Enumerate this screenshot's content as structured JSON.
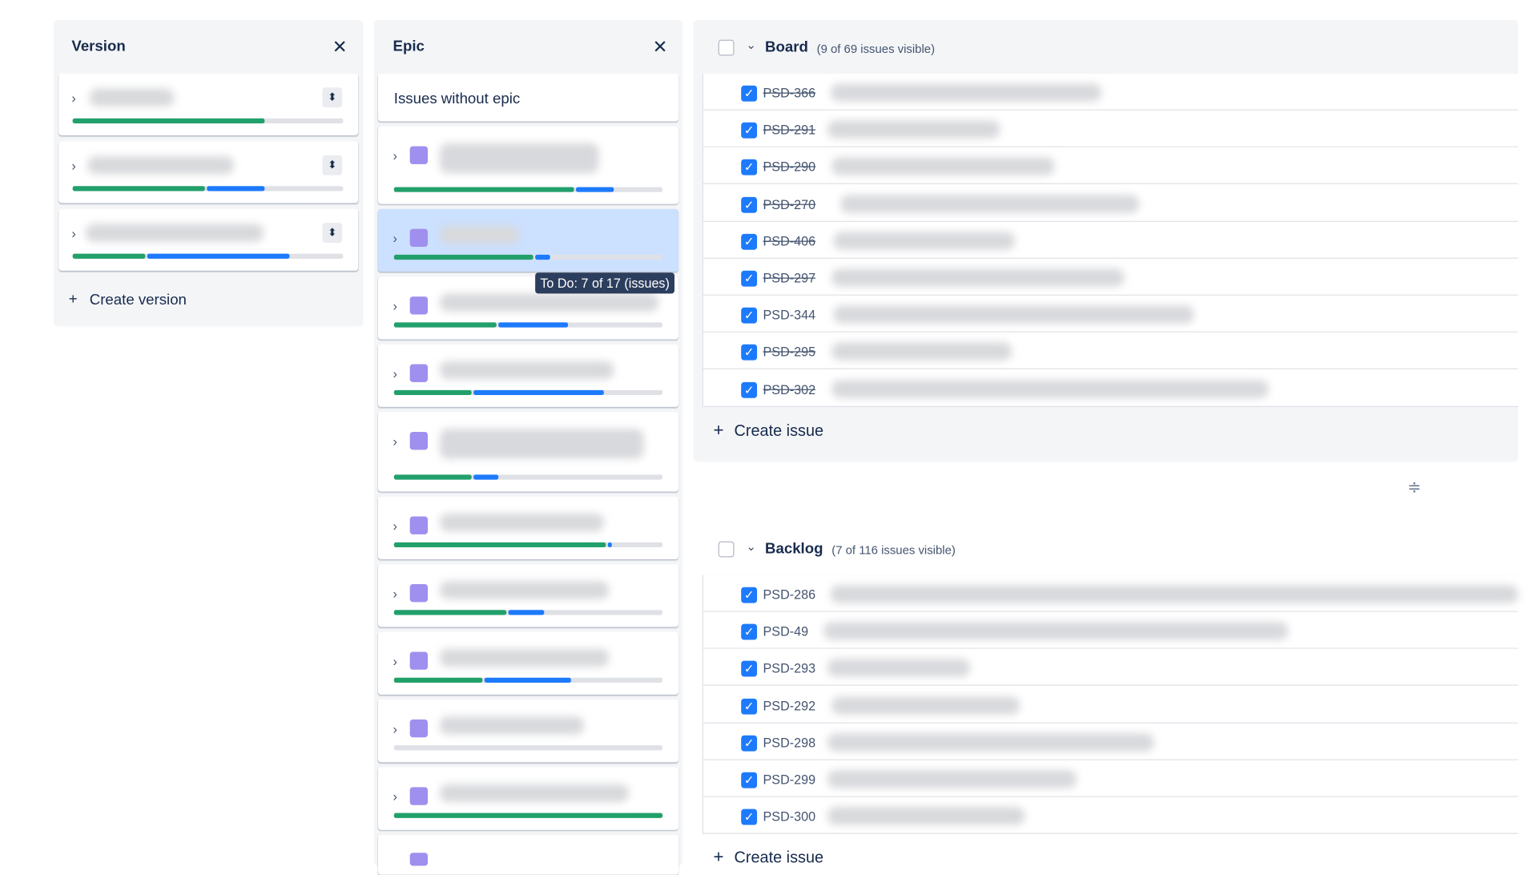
{
  "version_panel": {
    "title": "Version",
    "items": [
      {
        "done": 0.71,
        "in_progress": 0
      },
      {
        "done": 0.49,
        "in_progress": 0.22
      },
      {
        "done": 0.27,
        "in_progress": 0.53
      }
    ],
    "create": "Create version"
  },
  "epic_panel": {
    "title": "Epic",
    "no_epic": "Issues without epic",
    "epics": [
      {
        "done": 0.67,
        "in_progress": 0.15
      },
      {
        "done": 0.52,
        "in_progress": 0.06,
        "selected": true
      },
      {
        "done": 0.38,
        "in_progress": 0.27
      },
      {
        "done": 0.29,
        "in_progress": 0.49
      },
      {
        "done": 0.29,
        "in_progress": 0.1
      },
      {
        "done": 0.79,
        "in_progress": 0.02
      },
      {
        "done": 0.42,
        "in_progress": 0.14
      },
      {
        "done": 0.33,
        "in_progress": 0.33
      },
      {
        "done": 0,
        "in_progress": 0
      },
      {
        "done": 1,
        "in_progress": 0
      }
    ],
    "tooltip": "To Do: 7 of 17 (issues)"
  },
  "board": {
    "title": "Board",
    "count": "(9 of 69 issues visible)",
    "issues": [
      {
        "key": "PSD-366",
        "done": true
      },
      {
        "key": "PSD-291",
        "done": true
      },
      {
        "key": "PSD-290",
        "done": true
      },
      {
        "key": "PSD-270",
        "done": true
      },
      {
        "key": "PSD-406",
        "done": true
      },
      {
        "key": "PSD-297",
        "done": true
      },
      {
        "key": "PSD-344",
        "done": false
      },
      {
        "key": "PSD-295",
        "done": true
      },
      {
        "key": "PSD-302",
        "done": true
      }
    ],
    "create": "Create issue"
  },
  "backlog": {
    "title": "Backlog",
    "count": "(7 of 116 issues visible)",
    "issues": [
      {
        "key": "PSD-286",
        "done": false
      },
      {
        "key": "PSD-49",
        "done": false
      },
      {
        "key": "PSD-293",
        "done": false
      },
      {
        "key": "PSD-292",
        "done": false
      },
      {
        "key": "PSD-298",
        "done": false
      },
      {
        "key": "PSD-299",
        "done": false
      },
      {
        "key": "PSD-300",
        "done": false
      }
    ],
    "create": "Create issue"
  }
}
